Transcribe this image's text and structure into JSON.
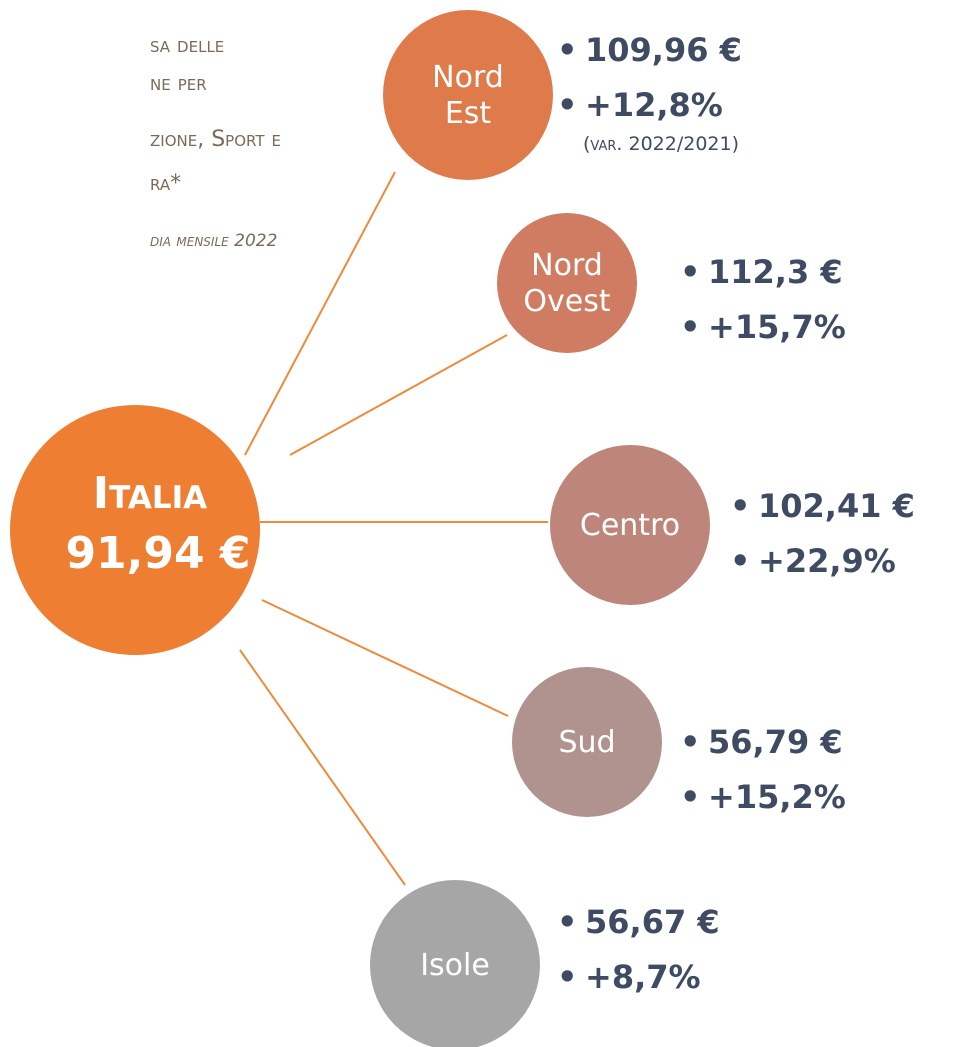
{
  "title": {
    "lines": [
      "sa delle",
      "ne per",
      "zione, Sport e",
      "ra*"
    ],
    "subtitle": "dia mensile 2022"
  },
  "center": {
    "label": "Italia",
    "value": "91,94 €"
  },
  "nodes": [
    {
      "label": [
        "Nord",
        "Est"
      ],
      "value": "109,96 €",
      "change": "+12,8%",
      "note": "(var. 2022/2021)"
    },
    {
      "label": [
        "Nord",
        "Ovest"
      ],
      "value": "112,3 €",
      "change": "+15,7%"
    },
    {
      "label": [
        "Centro"
      ],
      "value": "102,41 €",
      "change": "+22,9%"
    },
    {
      "label": [
        "Sud"
      ],
      "value": "56,79 €",
      "change": "+15,2%"
    },
    {
      "label": [
        "Isole"
      ],
      "value": "56,67 €",
      "change": "+8,7%"
    }
  ]
}
